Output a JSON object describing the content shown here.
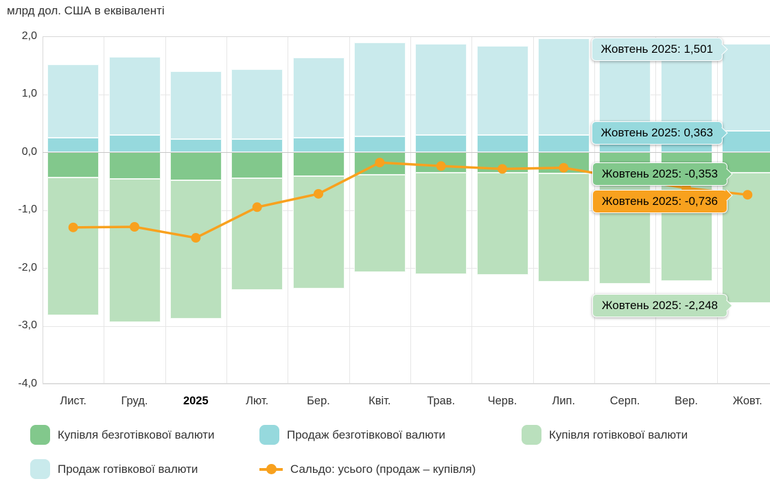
{
  "title": "млрд дол. США в еквіваленті",
  "chart_data": {
    "type": "bar",
    "subtype": "stacked-column-with-line",
    "title": "млрд дол. США в еквіваленті",
    "categories": [
      "Лист.",
      "Груд.",
      "2025",
      "Лют.",
      "Бер.",
      "Квіт.",
      "Трав.",
      "Черв.",
      "Лип.",
      "Серп.",
      "Вер.",
      "Жовт."
    ],
    "ylim": [
      -4.0,
      2.0
    ],
    "ytick_labels": [
      "2,0",
      "1,0",
      "0,0",
      "-1,0",
      "-2,0",
      "-3,0",
      "-4,0"
    ],
    "grid": "on",
    "legend_position": "bottom",
    "series": [
      {
        "name": "Купівля безготівкової валюти",
        "color": "#82c88c",
        "values": [
          -0.44,
          -0.46,
          -0.48,
          -0.45,
          -0.41,
          -0.39,
          -0.36,
          -0.36,
          -0.37,
          -0.36,
          -0.35,
          -0.353
        ]
      },
      {
        "name": "Продаж безготівкової валюти",
        "color": "#96d9dd",
        "values": [
          0.25,
          0.29,
          0.22,
          0.22,
          0.25,
          0.27,
          0.29,
          0.29,
          0.3,
          0.3,
          0.3,
          0.363
        ]
      },
      {
        "name": "Купівля готівкової валюти",
        "color": "#bae0bd",
        "values": [
          -2.38,
          -2.48,
          -2.4,
          -1.93,
          -1.94,
          -1.68,
          -1.75,
          -1.76,
          -1.87,
          -1.91,
          -1.87,
          -2.248
        ]
      },
      {
        "name": "Продаж готівкової валюти",
        "color": "#c9eaec",
        "values": [
          1.27,
          1.36,
          1.18,
          1.21,
          1.38,
          1.62,
          1.58,
          1.54,
          1.67,
          1.52,
          1.3,
          1.501
        ]
      }
    ],
    "line": {
      "name": "Сальдо: усього (продаж – купівля)",
      "color": "#f8a11e",
      "values": [
        -1.3,
        -1.29,
        -1.48,
        -0.95,
        -0.72,
        -0.18,
        -0.24,
        -0.29,
        -0.27,
        -0.45,
        -0.62,
        -0.736
      ]
    },
    "stack_order_pos": [
      1,
      3
    ],
    "stack_order_neg": [
      0,
      2
    ]
  },
  "tooltips": [
    {
      "text": "Жовтень 2025: 1,501"
    },
    {
      "text": "Жовтень 2025: 0,363"
    },
    {
      "text": "Жовтень 2025: -0,353"
    },
    {
      "text": "Жовтень 2025: -0,736"
    },
    {
      "text": "Жовтень 2025: -2,248"
    }
  ]
}
